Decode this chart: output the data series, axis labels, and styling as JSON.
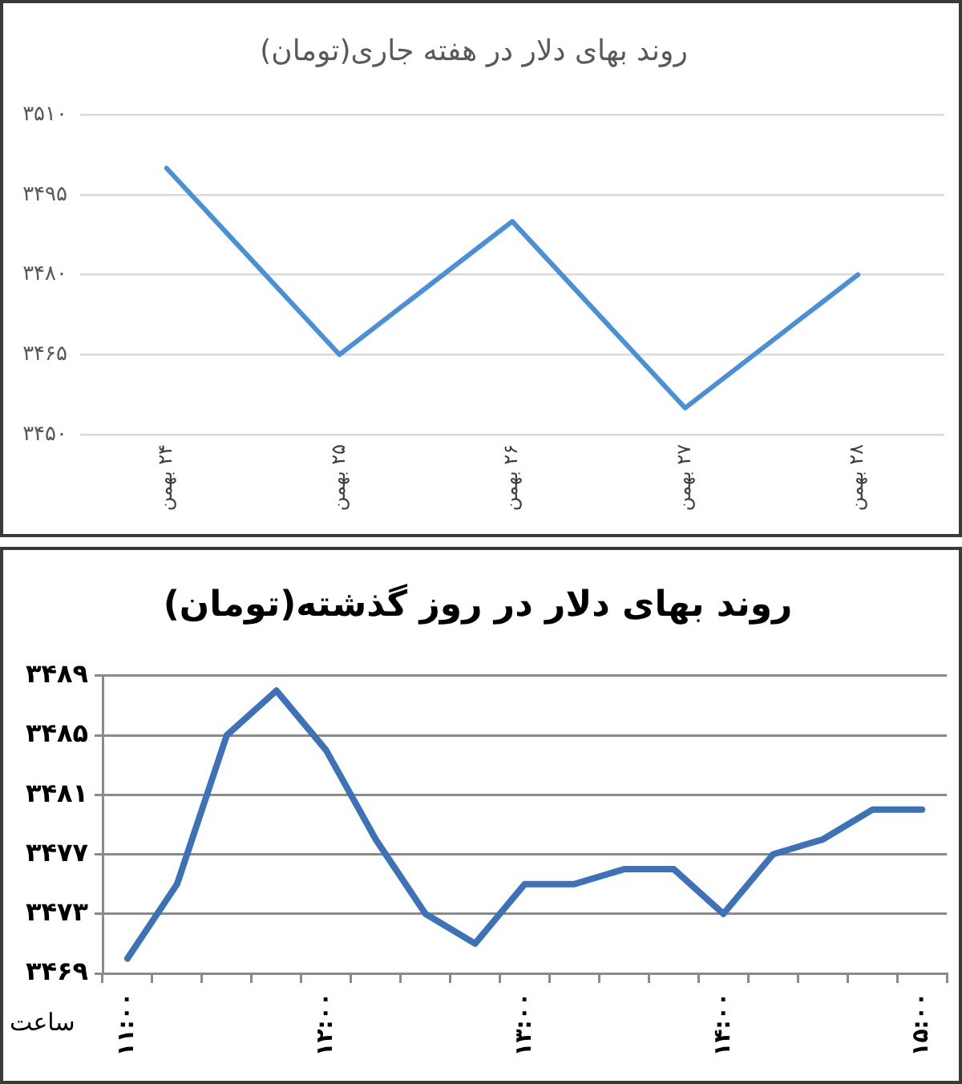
{
  "chart_data": [
    {
      "type": "line",
      "title": "روند بهای دلار در هفته جاری(تومان)",
      "categories": [
        "۲۴ بهمن",
        "۲۵ بهمن",
        "۲۶ بهمن",
        "۲۷ بهمن",
        "۲۸ بهمن"
      ],
      "values": [
        3500,
        3465,
        3490,
        3455,
        3480
      ],
      "color": "#4a90d9",
      "ylim": [
        3450,
        3510
      ],
      "yticks": [
        {
          "value": 3450,
          "label": "۳۴۵۰"
        },
        {
          "value": 3465,
          "label": "۳۴۶۵"
        },
        {
          "value": 3480,
          "label": "۳۴۸۰"
        },
        {
          "value": 3495,
          "label": "۳۴۹۵"
        },
        {
          "value": 3510,
          "label": "۳۵۱۰"
        }
      ],
      "grid": "y"
    },
    {
      "type": "line",
      "title": "روند بهای دلار در روز گذشته(تومان)",
      "xlabel": "ساعت",
      "categories": [
        "۱۱:۰۰",
        null,
        null,
        null,
        "۱۲:۰۰",
        null,
        null,
        null,
        "۱۳:۰۰",
        null,
        null,
        null,
        "۱۴:۰۰",
        null,
        null,
        null,
        "۱۵:۰۰"
      ],
      "values": [
        3470,
        3475,
        3485,
        3488,
        3484,
        3478,
        3473,
        3471,
        3475,
        3475,
        3476,
        3476,
        3473,
        3477,
        3478,
        3480,
        3480
      ],
      "color": "#3d72b8",
      "ylim": [
        3469,
        3489
      ],
      "yticks": [
        {
          "value": 3469,
          "label": "۳۴۶۹"
        },
        {
          "value": 3473,
          "label": "۳۴۷۳"
        },
        {
          "value": 3477,
          "label": "۳۴۷۷"
        },
        {
          "value": 3481,
          "label": "۳۴۸۱"
        },
        {
          "value": 3485,
          "label": "۳۴۸۵"
        },
        {
          "value": 3489,
          "label": "۳۴۸۹"
        }
      ],
      "grid": "y"
    }
  ]
}
